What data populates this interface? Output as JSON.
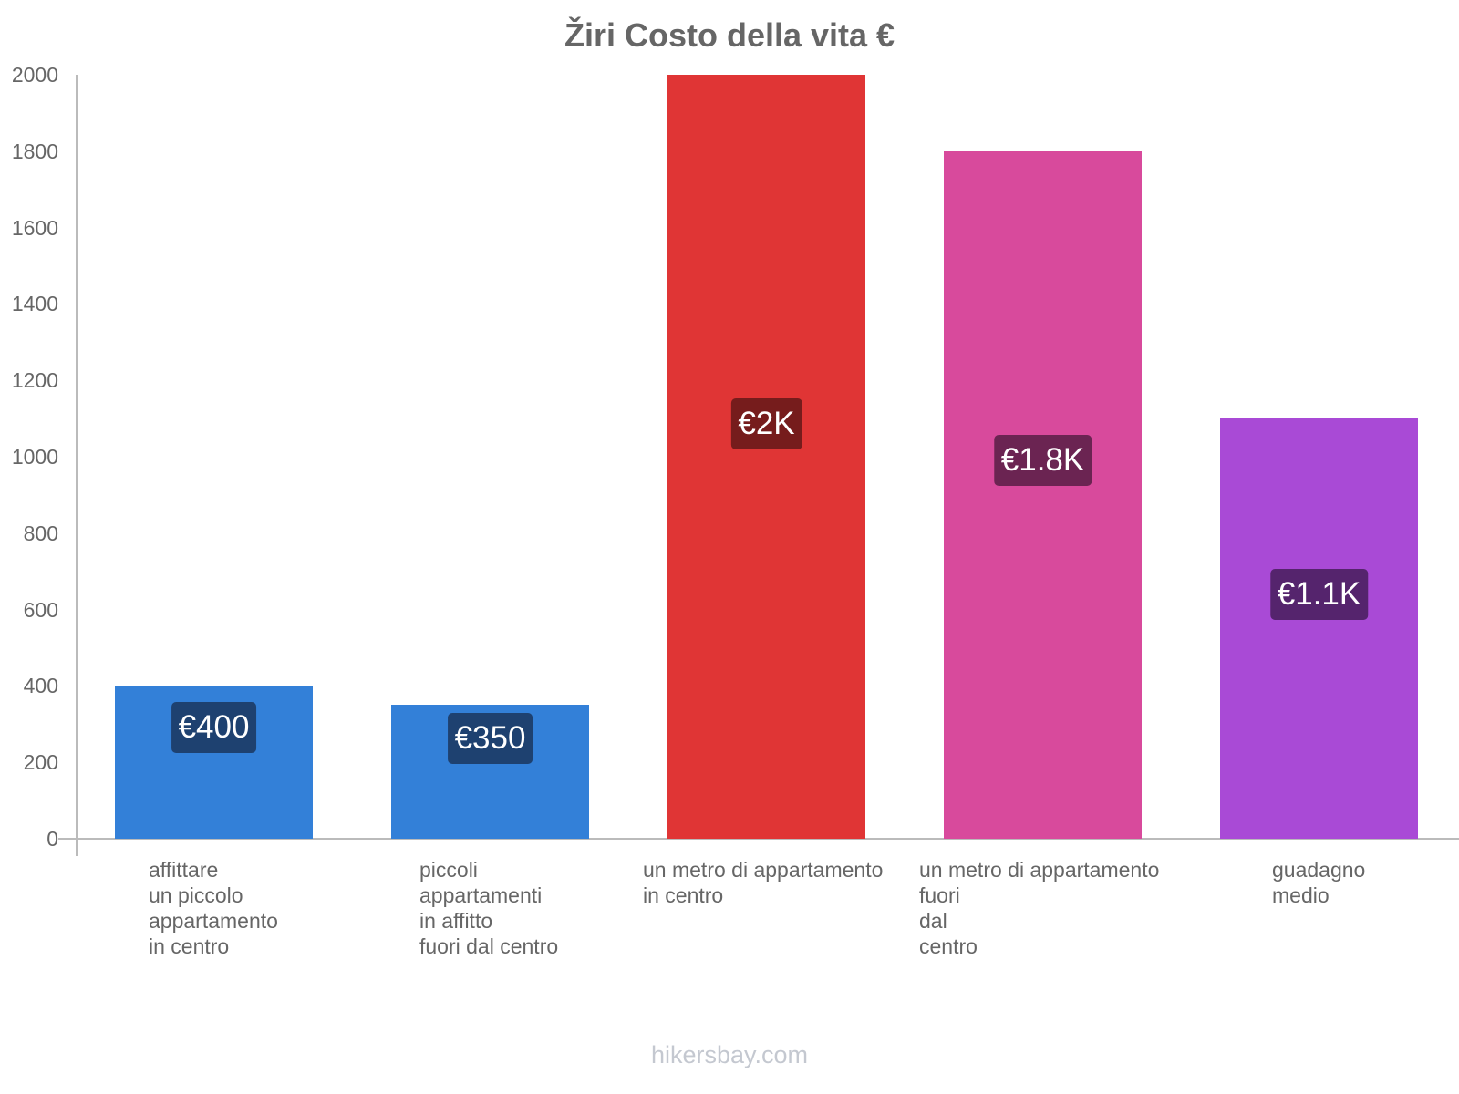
{
  "chart_data": {
    "type": "bar",
    "title": "Žiri Costo della vita €",
    "xlabel": "",
    "ylabel": "",
    "ylim": [
      0,
      2000
    ],
    "yticks": [
      0,
      200,
      400,
      600,
      800,
      1000,
      1200,
      1400,
      1600,
      1800,
      2000
    ],
    "grid": false,
    "legend": null,
    "categories": [
      "affittare un piccolo appartamento in centro",
      "piccoli appartamenti in affitto fuori dal centro",
      "un metro di appartamento in centro",
      "un metro di appartamento fuori dal centro",
      "guadagno medio"
    ],
    "values": [
      400,
      350,
      2000,
      1800,
      1100
    ],
    "data_labels": [
      "€400",
      "€350",
      "€2K",
      "€1.8K",
      "€1.1K"
    ],
    "colors": [
      "#3380d8",
      "#3380d8",
      "#e03535",
      "#d84a9c",
      "#a94ad6"
    ],
    "label_colors": [
      "#1e4170",
      "#1e4170",
      "#761c1c",
      "#6b2452",
      "#55246d"
    ]
  },
  "ui": {
    "title": "Žiri Costo della vita €",
    "y_tick_labels": [
      "0",
      "200",
      "400",
      "600",
      "800",
      "1000",
      "1200",
      "1400",
      "1600",
      "1800",
      "2000"
    ],
    "x_labels": [
      "affittare\nun piccolo\nappartamento\nin centro",
      "piccoli\nappartamenti\nin affitto\nfuori dal centro",
      "un metro di appartamento\nin centro",
      "un metro di appartamento\nfuori\ndal\ncentro",
      "guadagno\nmedio"
    ],
    "watermark": "hikersbay.com"
  }
}
